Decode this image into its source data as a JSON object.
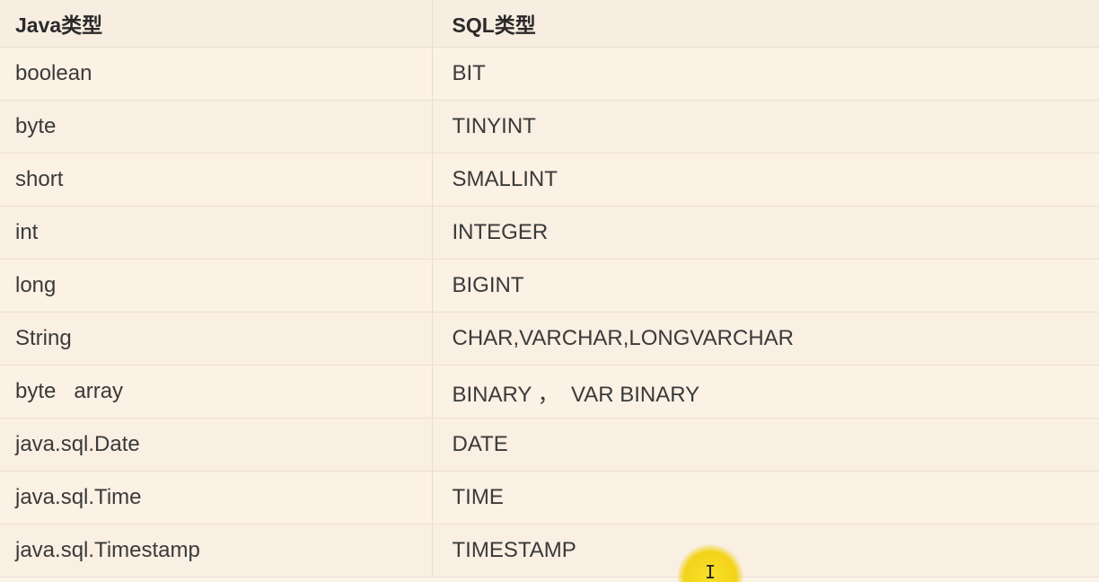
{
  "table": {
    "headers": [
      "Java类型",
      "SQL类型"
    ],
    "rows": [
      [
        "boolean",
        "BIT"
      ],
      [
        "byte",
        "TINYINT"
      ],
      [
        "short",
        "SMALLINT"
      ],
      [
        "int",
        "INTEGER"
      ],
      [
        "long",
        "BIGINT"
      ],
      [
        "String",
        "CHAR,VARCHAR,LONGVARCHAR"
      ],
      [
        "byte   array",
        "BINARY ，  VAR BINARY"
      ],
      [
        "java.sql.Date",
        "DATE"
      ],
      [
        "java.sql.Time",
        "TIME"
      ],
      [
        "java.sql.Timestamp",
        "TIMESTAMP"
      ]
    ]
  },
  "cursor": {
    "icon": "text-cursor-icon",
    "highlight_color": "#f3d31a"
  }
}
